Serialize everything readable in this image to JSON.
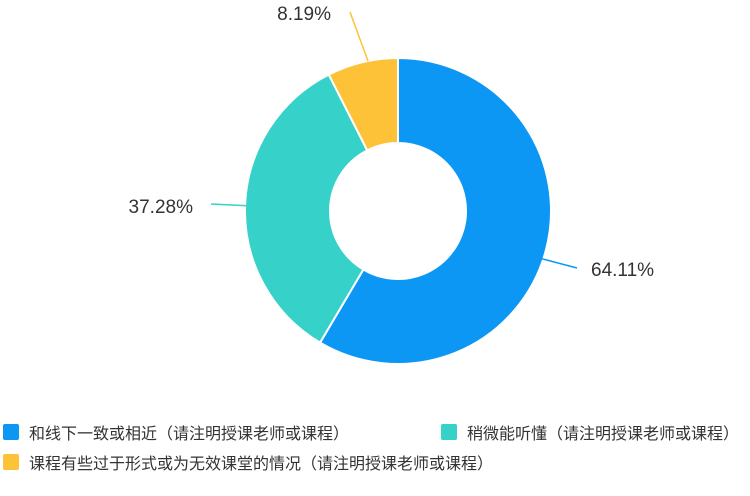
{
  "chart_data": {
    "type": "pie",
    "variant": "donut",
    "slices": [
      {
        "label": "和线下一致或相近（请注明授课老师或课程）",
        "value": 64.11,
        "value_label": "64.11%",
        "color": "#0d97f4"
      },
      {
        "label": "稍微能听懂（请注明授课老师或课程）",
        "value": 37.28,
        "value_label": "37.28%",
        "color": "#36d1c8"
      },
      {
        "label": "课程有些过于形式或为无效课堂的情况（请注明授课老师或课程）",
        "value": 8.19,
        "value_label": "8.19%",
        "color": "#fdc238"
      }
    ],
    "legend_position": "bottom-left"
  }
}
